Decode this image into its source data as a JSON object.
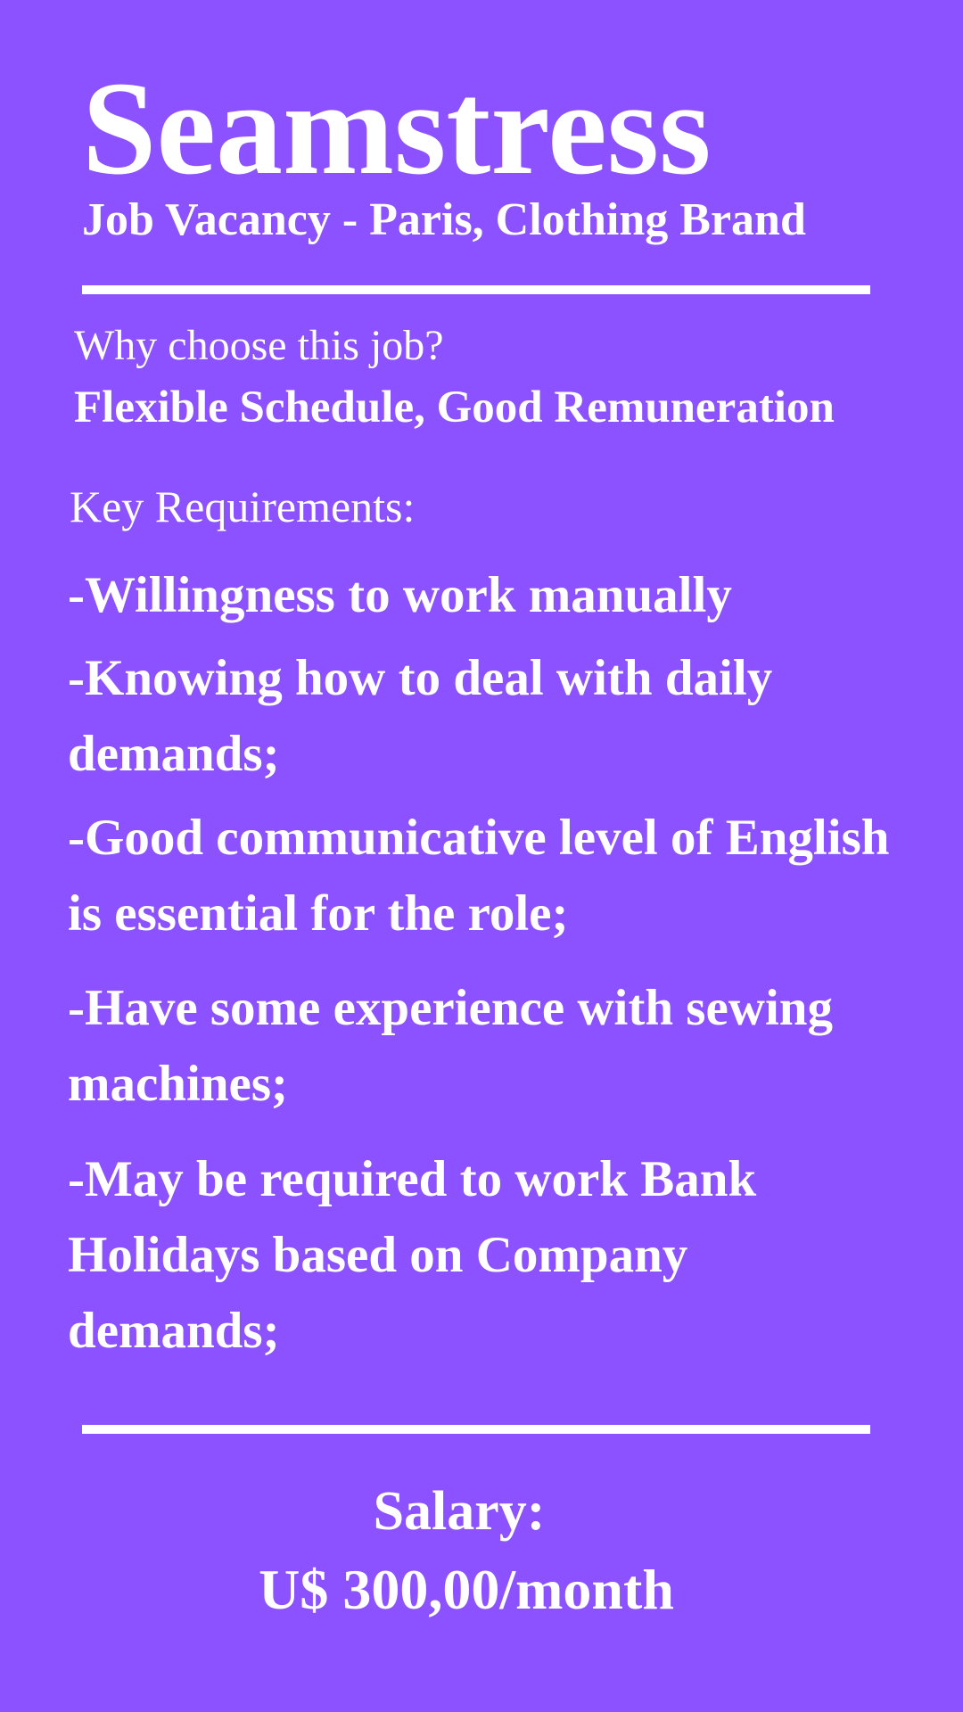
{
  "header": {
    "title": "Seamstress",
    "subtitle": "Job Vacancy - Paris, Clothing Brand"
  },
  "why": {
    "label": "Why choose this job?",
    "answer": "Flexible Schedule, Good Remuneration"
  },
  "requirements": {
    "label": "Key Requirements:",
    "items": [
      "-Willingness to work manually",
      "-Knowing how to deal with daily demands;",
      "-Good communicative level of English is essential for the role;",
      "-Have some experience with sewing machines;",
      "-May be required to work Bank Holidays based on Company demands;"
    ]
  },
  "salary": {
    "label": "Salary:",
    "value": "U$ 300,00/month"
  },
  "colors": {
    "background": "#8c52ff",
    "text": "#ffffff"
  }
}
